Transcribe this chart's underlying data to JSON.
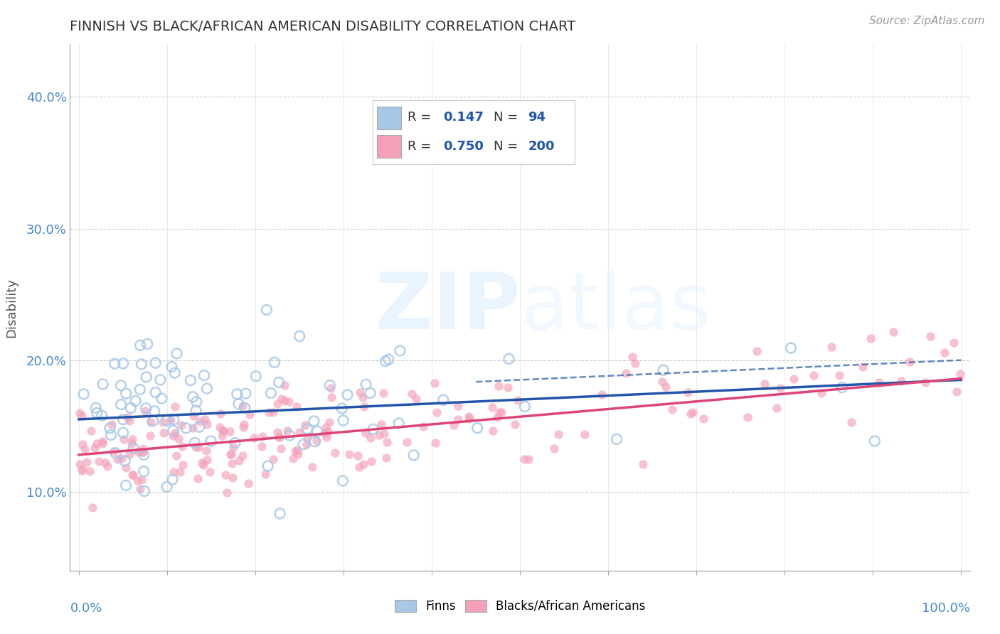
{
  "title": "FINNISH VS BLACK/AFRICAN AMERICAN DISABILITY CORRELATION CHART",
  "source": "Source: ZipAtlas.com",
  "ylabel": "Disability",
  "xlim": [
    -0.01,
    1.01
  ],
  "ylim": [
    0.04,
    0.44
  ],
  "yticks": [
    0.1,
    0.2,
    0.3,
    0.4
  ],
  "ytick_labels": [
    "10.0%",
    "20.0%",
    "30.0%",
    "40.0%"
  ],
  "legend_R_finn": "0.147",
  "legend_N_finn": "94",
  "legend_R_black": "0.750",
  "legend_N_black": "200",
  "finn_color": "#a8c8e8",
  "black_color": "#f4a0b8",
  "finn_line_color": "#2255aa",
  "black_line_color": "#dd4477",
  "background_color": "#ffffff",
  "grid_color": "#cccccc",
  "finn_seed": 12345,
  "black_seed": 99999
}
